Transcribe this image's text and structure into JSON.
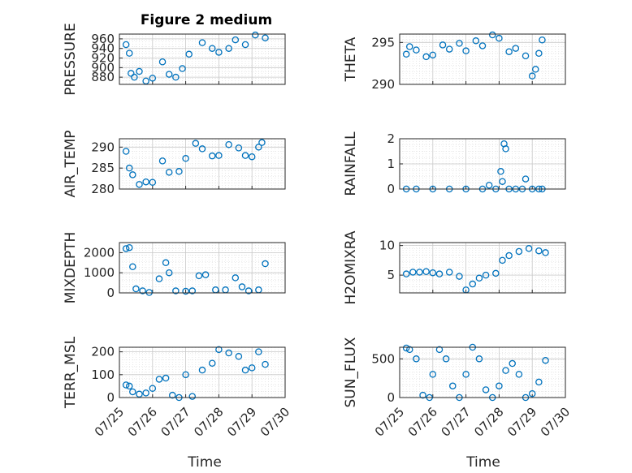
{
  "figure": {
    "title": "Figure 2 medium",
    "xlabel": "Time",
    "marker_color": "#0072BD",
    "x_tick_labels": [
      "07/25",
      "07/26",
      "07/27",
      "07/28",
      "07/29",
      "07/30"
    ]
  },
  "chart_data": [
    {
      "type": "scatter",
      "ylabel": "PRESSURE",
      "ylim": [
        865,
        970
      ],
      "yticks": [
        880,
        900,
        920,
        940,
        960
      ],
      "grid": "on",
      "xlim": [
        0,
        5
      ],
      "x": [
        0.2,
        0.3,
        0.35,
        0.45,
        0.6,
        0.8,
        1.0,
        1.3,
        1.5,
        1.7,
        1.9,
        2.1,
        2.5,
        2.8,
        3.0,
        3.3,
        3.5,
        3.8,
        4.1,
        4.4
      ],
      "values": [
        948,
        930,
        888,
        880,
        892,
        872,
        878,
        912,
        886,
        880,
        898,
        928,
        952,
        940,
        932,
        940,
        958,
        948,
        968,
        962
      ]
    },
    {
      "type": "scatter",
      "ylabel": "THETA",
      "ylim": [
        290,
        296
      ],
      "yticks": [
        290,
        295
      ],
      "grid": "on",
      "xlim": [
        0,
        5
      ],
      "x": [
        0.2,
        0.3,
        0.5,
        0.8,
        1.0,
        1.3,
        1.5,
        1.8,
        2.0,
        2.3,
        2.5,
        2.8,
        3.0,
        3.3,
        3.5,
        3.8,
        4.0,
        4.1,
        4.2,
        4.3
      ],
      "values": [
        293.6,
        294.5,
        294.1,
        293.3,
        293.5,
        294.7,
        294.2,
        294.9,
        294.0,
        295.2,
        294.6,
        295.9,
        295.5,
        293.9,
        294.3,
        293.4,
        291.0,
        291.8,
        293.7,
        295.3
      ]
    },
    {
      "type": "scatter",
      "ylabel": "AIR_TEMP",
      "ylim": [
        280,
        292
      ],
      "yticks": [
        280,
        285,
        290
      ],
      "grid": "on",
      "xlim": [
        0,
        5
      ],
      "x": [
        0.2,
        0.3,
        0.4,
        0.6,
        0.8,
        1.0,
        1.3,
        1.5,
        1.8,
        2.0,
        2.3,
        2.5,
        2.8,
        3.0,
        3.3,
        3.6,
        3.8,
        4.0,
        4.2,
        4.3
      ],
      "values": [
        289.0,
        285.0,
        283.4,
        281.1,
        281.7,
        281.6,
        286.7,
        284.0,
        284.2,
        287.3,
        290.9,
        289.6,
        287.9,
        288.0,
        290.6,
        289.8,
        288.0,
        287.7,
        290.0,
        291.1
      ]
    },
    {
      "type": "scatter",
      "ylabel": "RAINFALL",
      "ylim": [
        0,
        2
      ],
      "yticks": [
        0,
        1,
        2
      ],
      "grid": "on",
      "xlim": [
        0,
        5
      ],
      "x": [
        0.2,
        0.5,
        1.0,
        1.5,
        2.0,
        2.5,
        2.7,
        2.9,
        3.05,
        3.1,
        3.15,
        3.2,
        3.3,
        3.5,
        3.7,
        3.8,
        4.0,
        4.2,
        4.3
      ],
      "values": [
        0,
        0,
        0,
        0,
        0,
        0,
        0.15,
        0,
        0.7,
        0.3,
        1.8,
        1.6,
        0,
        0,
        0,
        0.4,
        0,
        0,
        0
      ]
    },
    {
      "type": "scatter",
      "ylabel": "MIXDEPTH",
      "ylim": [
        0,
        2500
      ],
      "yticks": [
        0,
        1000,
        2000
      ],
      "grid": "on",
      "xlim": [
        0,
        5
      ],
      "x": [
        0.2,
        0.3,
        0.4,
        0.5,
        0.7,
        0.9,
        1.2,
        1.4,
        1.5,
        1.7,
        2.0,
        2.2,
        2.4,
        2.6,
        2.9,
        3.2,
        3.5,
        3.7,
        3.9,
        4.2,
        4.4
      ],
      "values": [
        2200,
        2250,
        1300,
        200,
        100,
        20,
        700,
        1500,
        1000,
        100,
        80,
        100,
        850,
        900,
        150,
        150,
        750,
        300,
        100,
        150,
        1450
      ]
    },
    {
      "type": "scatter",
      "ylabel": "H2OMIXRA",
      "ylim": [
        2,
        10.5
      ],
      "yticks": [
        5,
        10
      ],
      "grid": "on",
      "xlim": [
        0,
        5
      ],
      "x": [
        0.2,
        0.4,
        0.6,
        0.8,
        1.0,
        1.2,
        1.5,
        1.8,
        2.0,
        2.2,
        2.4,
        2.6,
        2.9,
        3.1,
        3.3,
        3.6,
        3.9,
        4.2,
        4.4
      ],
      "values": [
        5.2,
        5.5,
        5.5,
        5.6,
        5.4,
        5.2,
        5.5,
        4.8,
        2.5,
        3.5,
        4.5,
        5.0,
        5.3,
        7.5,
        8.3,
        9.0,
        9.5,
        9.1,
        8.8
      ]
    },
    {
      "type": "scatter",
      "ylabel": "TERR_MSL",
      "ylim": [
        0,
        220
      ],
      "yticks": [
        0,
        100,
        200
      ],
      "grid": "on",
      "xlim": [
        0,
        5
      ],
      "x": [
        0.2,
        0.3,
        0.4,
        0.6,
        0.8,
        1.0,
        1.2,
        1.4,
        1.6,
        1.8,
        2.0,
        2.2,
        2.5,
        2.8,
        3.0,
        3.3,
        3.6,
        3.8,
        4.0,
        4.2,
        4.4
      ],
      "values": [
        55,
        50,
        25,
        15,
        20,
        40,
        80,
        85,
        10,
        0,
        100,
        5,
        120,
        150,
        210,
        195,
        180,
        120,
        130,
        200,
        145
      ]
    },
    {
      "type": "scatter",
      "ylabel": "SUN_FLUX",
      "ylim": [
        0,
        650
      ],
      "yticks": [
        0,
        500
      ],
      "grid": "on",
      "xlim": [
        0,
        5
      ],
      "x": [
        0.2,
        0.3,
        0.5,
        0.7,
        0.9,
        1.0,
        1.2,
        1.4,
        1.6,
        1.8,
        2.0,
        2.2,
        2.4,
        2.6,
        2.8,
        3.0,
        3.2,
        3.4,
        3.6,
        3.8,
        4.0,
        4.2,
        4.4
      ],
      "values": [
        640,
        620,
        500,
        30,
        0,
        300,
        620,
        500,
        150,
        0,
        300,
        650,
        500,
        100,
        0,
        150,
        350,
        440,
        300,
        0,
        50,
        200,
        480
      ]
    }
  ]
}
